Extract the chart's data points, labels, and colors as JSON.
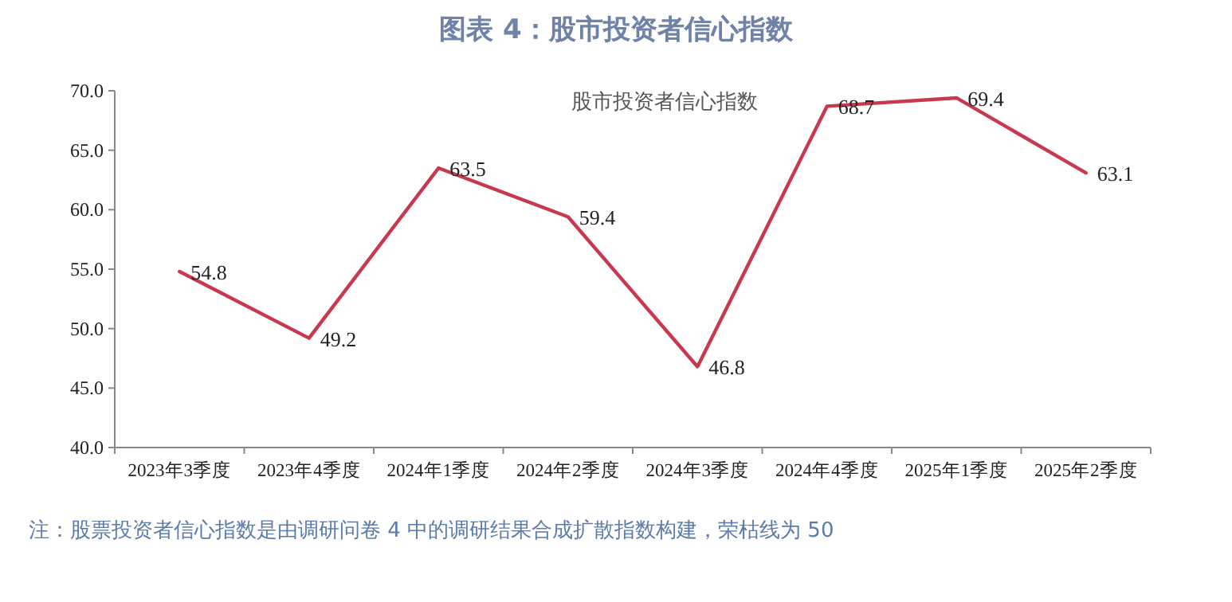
{
  "chart_data": {
    "type": "line",
    "title": "图表 4：股市投资者信心指数",
    "categories": [
      "2023年3季度",
      "2023年4季度",
      "2024年1季度",
      "2024年2季度",
      "2024年3季度",
      "2024年4季度",
      "2025年1季度",
      "2025年2季度"
    ],
    "series": [
      {
        "color": "#c8394f",
        "values": [
          54.8,
          49.2,
          63.5,
          59.4,
          46.8,
          68.7,
          69.4,
          63.1
        ]
      }
    ],
    "ylim": [
      40,
      70
    ],
    "yticks": [
      {
        "value": 40,
        "label": "40.0"
      },
      {
        "value": 45,
        "label": "45.0"
      },
      {
        "value": 50,
        "label": "50.0"
      },
      {
        "value": 55,
        "label": "55.0"
      },
      {
        "value": 60,
        "label": "60.0"
      },
      {
        "value": 65,
        "label": "65.0"
      },
      {
        "value": 70,
        "label": "70.0"
      }
    ],
    "grid": false,
    "marker": "none",
    "line_style": "solid",
    "data_labels": true,
    "annotations": [
      "股市投资者信心指数",
      "注：股票投资者信心指数是由调研问卷 4 中的调研结果合成扩散指数构建，荣枯线为 50"
    ]
  }
}
